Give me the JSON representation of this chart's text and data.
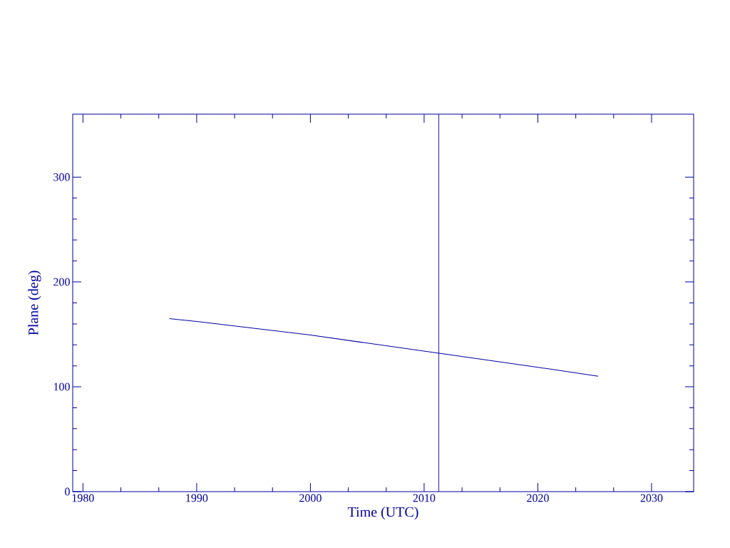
{
  "chart_data": {
    "type": "line",
    "xlabel": "Time (UTC)",
    "ylabel": "Plane (deg)",
    "x": [
      1987.6,
      1990,
      2000,
      2011.3,
      2020,
      2025.3
    ],
    "series": [
      {
        "color": "#0000a0",
        "values": [
          165,
          162.3,
          149.3,
          132,
          118.6,
          110
        ]
      }
    ],
    "xlim": [
      1979.1,
      2033.7
    ],
    "xticks": [
      1980,
      1990,
      2000,
      2010,
      2020,
      2030
    ],
    "ylim": [
      0,
      360
    ],
    "yticks": [
      0,
      100,
      200,
      300
    ],
    "ref_lines": [
      {
        "axis": "x",
        "value": 2011.3,
        "color": "#0000a0"
      }
    ],
    "marker": "none",
    "line_style": "solid",
    "grid": false
  }
}
